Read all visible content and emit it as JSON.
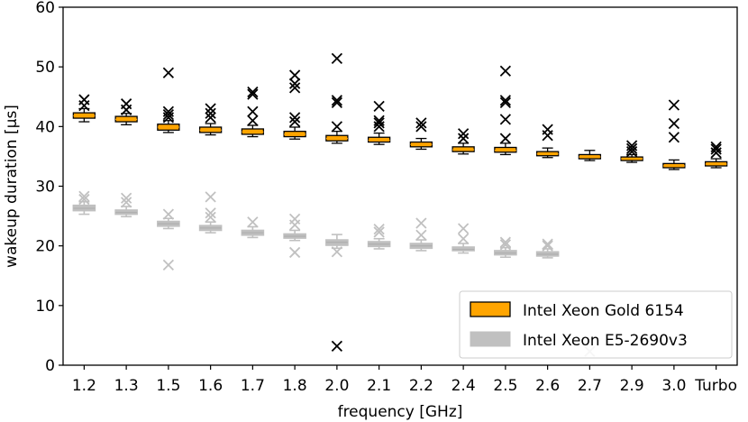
{
  "chart_data": {
    "type": "boxplot",
    "xlabel": "frequency [GHz]",
    "ylabel": "wakeup duration [µs]",
    "ylim": [
      0,
      60
    ],
    "yticks": [
      0,
      10,
      20,
      30,
      40,
      50,
      60
    ],
    "categories": [
      "1.2",
      "1.3",
      "1.5",
      "1.6",
      "1.7",
      "1.8",
      "2.0",
      "2.1",
      "2.2",
      "2.4",
      "2.5",
      "2.6",
      "2.7",
      "2.9",
      "3.0",
      "Turbo"
    ],
    "grid": false,
    "legend_position": "bottom-right",
    "series": [
      {
        "name": "Intel Xeon Gold 6154",
        "color": "#ffa500",
        "edge_color": "#000000",
        "boxes": [
          {
            "whislo": 40.8,
            "q1": 41.4,
            "med": 41.8,
            "q3": 42.3,
            "whishi": 43.0,
            "fliers": [
              43.5,
              44.5
            ]
          },
          {
            "whislo": 40.3,
            "q1": 40.8,
            "med": 41.2,
            "q3": 41.7,
            "whishi": 42.2,
            "fliers": [
              42.8,
              43.8
            ]
          },
          {
            "whislo": 39.0,
            "q1": 39.4,
            "med": 39.9,
            "q3": 40.4,
            "whishi": 41.0,
            "fliers": [
              41.5,
              42.0,
              42.5,
              49.0
            ]
          },
          {
            "whislo": 38.6,
            "q1": 39.0,
            "med": 39.4,
            "q3": 39.9,
            "whishi": 40.5,
            "fliers": [
              41.5,
              42.2,
              43.0
            ]
          },
          {
            "whislo": 38.3,
            "q1": 38.7,
            "med": 39.1,
            "q3": 39.6,
            "whishi": 40.2,
            "fliers": [
              41.0,
              42.5,
              45.4,
              45.8
            ]
          },
          {
            "whislo": 37.9,
            "q1": 38.3,
            "med": 38.7,
            "q3": 39.2,
            "whishi": 39.9,
            "fliers": [
              40.8,
              41.5,
              46.5,
              47.2,
              48.6
            ]
          },
          {
            "whislo": 37.2,
            "q1": 37.6,
            "med": 38.0,
            "q3": 38.5,
            "whishi": 39.2,
            "fliers": [
              40.0,
              44.0,
              44.4,
              51.4,
              3.2
            ]
          },
          {
            "whislo": 37.0,
            "q1": 37.4,
            "med": 37.7,
            "q3": 38.2,
            "whishi": 38.9,
            "fliers": [
              40.0,
              40.6,
              41.0,
              43.4
            ]
          },
          {
            "whislo": 36.2,
            "q1": 36.6,
            "med": 37.0,
            "q3": 37.4,
            "whishi": 38.0,
            "fliers": [
              40.0,
              40.6
            ]
          },
          {
            "whislo": 35.4,
            "q1": 35.8,
            "med": 36.1,
            "q3": 36.6,
            "whishi": 37.2,
            "fliers": [
              38.0,
              38.8
            ]
          },
          {
            "whislo": 35.3,
            "q1": 35.7,
            "med": 36.0,
            "q3": 36.5,
            "whishi": 37.2,
            "fliers": [
              38.0,
              41.2,
              44.0,
              44.4,
              49.3
            ]
          },
          {
            "whislo": 34.8,
            "q1": 35.1,
            "med": 35.4,
            "q3": 35.8,
            "whishi": 36.4,
            "fliers": [
              38.5,
              39.5
            ]
          },
          {
            "whislo": 34.3,
            "q1": 34.6,
            "med": 34.9,
            "q3": 35.3,
            "whishi": 36.0,
            "fliers": []
          },
          {
            "whislo": 34.0,
            "q1": 34.3,
            "med": 34.6,
            "q3": 34.9,
            "whishi": 35.3,
            "fliers": [
              35.8,
              36.3,
              36.8
            ]
          },
          {
            "whislo": 32.8,
            "q1": 33.1,
            "med": 33.4,
            "q3": 33.8,
            "whishi": 34.4,
            "fliers": [
              38.2,
              40.5,
              43.6
            ]
          },
          {
            "whislo": 33.1,
            "q1": 33.4,
            "med": 33.7,
            "q3": 34.1,
            "whishi": 34.6,
            "fliers": [
              35.6,
              36.2,
              36.6
            ]
          }
        ]
      },
      {
        "name": "Intel Xeon E5-2690v3",
        "color": "#c0c0c0",
        "edge_color": "#c0c0c0",
        "boxes": [
          {
            "whislo": 25.3,
            "q1": 25.9,
            "med": 26.3,
            "q3": 26.8,
            "whishi": 27.4,
            "fliers": [
              27.8,
              28.3
            ]
          },
          {
            "whislo": 24.9,
            "q1": 25.3,
            "med": 25.6,
            "q3": 26.0,
            "whishi": 26.6,
            "fliers": [
              27.3,
              28.0
            ]
          },
          {
            "whislo": 22.9,
            "q1": 23.3,
            "med": 23.7,
            "q3": 24.1,
            "whishi": 24.6,
            "fliers": [
              25.3,
              16.8
            ]
          },
          {
            "whislo": 22.2,
            "q1": 22.6,
            "med": 23.0,
            "q3": 23.4,
            "whishi": 24.0,
            "fliers": [
              24.8,
              25.5,
              28.2
            ]
          },
          {
            "whislo": 21.4,
            "q1": 21.8,
            "med": 22.2,
            "q3": 22.6,
            "whishi": 23.2,
            "fliers": [
              24.0
            ]
          },
          {
            "whislo": 20.9,
            "q1": 21.3,
            "med": 21.6,
            "q3": 22.0,
            "whishi": 22.6,
            "fliers": [
              23.5,
              24.5,
              18.9
            ]
          },
          {
            "whislo": 19.6,
            "q1": 20.1,
            "med": 20.6,
            "q3": 21.0,
            "whishi": 21.9,
            "fliers": [
              19.0
            ]
          },
          {
            "whislo": 19.5,
            "q1": 19.9,
            "med": 20.3,
            "q3": 20.7,
            "whishi": 21.2,
            "fliers": [
              22.3,
              22.8
            ]
          },
          {
            "whislo": 19.2,
            "q1": 19.6,
            "med": 20.0,
            "q3": 20.4,
            "whishi": 21.0,
            "fliers": [
              21.8,
              23.8
            ]
          },
          {
            "whislo": 18.8,
            "q1": 19.2,
            "med": 19.4,
            "q3": 19.8,
            "whishi": 20.4,
            "fliers": [
              21.2,
              22.9
            ]
          },
          {
            "whislo": 18.1,
            "q1": 18.5,
            "med": 18.8,
            "q3": 19.2,
            "whishi": 19.7,
            "fliers": [
              20.2,
              20.6
            ]
          },
          {
            "whislo": 18.0,
            "q1": 18.3,
            "med": 18.6,
            "q3": 19.0,
            "whishi": 19.5,
            "fliers": [
              20.0,
              20.3
            ]
          },
          {
            "whislo": null,
            "q1": null,
            "med": null,
            "q3": null,
            "whishi": null,
            "fliers": [
              2.3
            ]
          },
          {
            "whislo": null,
            "q1": null,
            "med": null,
            "q3": null,
            "whishi": null,
            "fliers": []
          },
          {
            "whislo": null,
            "q1": null,
            "med": null,
            "q3": null,
            "whishi": null,
            "fliers": []
          },
          {
            "whislo": null,
            "q1": null,
            "med": null,
            "q3": null,
            "whishi": null,
            "fliers": []
          }
        ]
      }
    ]
  }
}
